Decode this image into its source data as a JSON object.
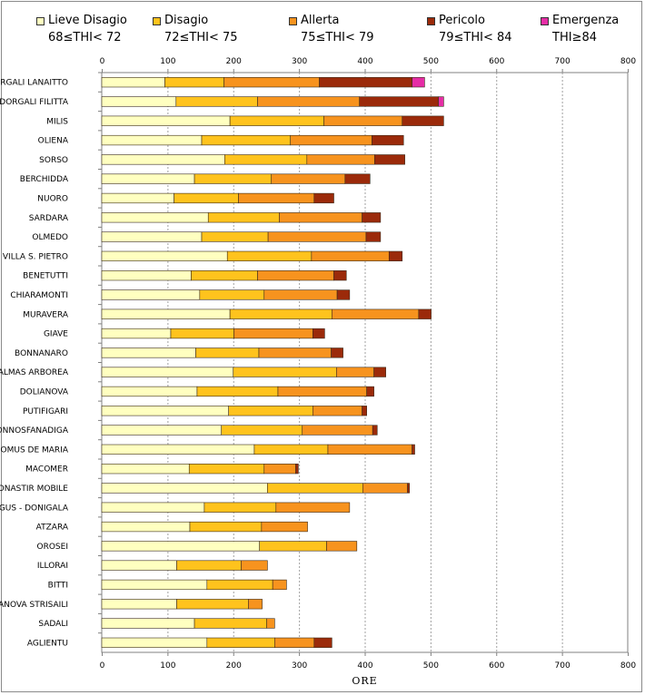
{
  "chart_data": {
    "type": "bar",
    "orientation": "horizontal",
    "stacked": true,
    "xlabel": "ORE",
    "xlim": [
      0,
      800
    ],
    "xticks": [
      "0",
      "100",
      "200",
      "300",
      "400",
      "500",
      "600",
      "700",
      "800"
    ],
    "grid": true,
    "legend_position": "top",
    "legend": [
      {
        "name": "Lieve Disagio",
        "range": "68≤THI< 72",
        "color": "#ffffc0"
      },
      {
        "name": "Disagio",
        "range": "72≤THI< 75",
        "color": "#ffc31d"
      },
      {
        "name": "Allerta",
        "range": "75≤THI< 79",
        "color": "#f7931e"
      },
      {
        "name": "Pericolo",
        "range": "79≤THI< 84",
        "color": "#9b2a0a"
      },
      {
        "name": "Emergenza",
        "range": "THI≥84",
        "color": "#e62da6"
      }
    ],
    "categories": [
      "DORGALI LANAITTO",
      "DORGALI FILITTA",
      "MILIS",
      "OLIENA",
      "SORSO",
      "BERCHIDDA",
      "NUORO",
      "SARDARA",
      "OLMEDO",
      "VILLA S. PIETRO",
      "BENETUTTI",
      "CHIARAMONTI",
      "MURAVERA",
      "GIAVE",
      "BONNANARO",
      "PALMAS ARBOREA",
      "DOLIANOVA",
      "PUTIFIGARI",
      "GONNOSFANADIGA",
      "DOMUS DE MARIA",
      "MACOMER",
      "MONASTIR MOBILE",
      "SIURGUS - DONIGALA",
      "ATZARA",
      "OROSEI",
      "ILLORAI",
      "BITTI",
      "VILLANOVA STRISAILI",
      "SADALI",
      "AGLIENTU"
    ],
    "series": [
      {
        "name": "Lieve Disagio",
        "values": [
          96,
          113,
          195,
          152,
          187,
          141,
          110,
          162,
          152,
          191,
          136,
          149,
          195,
          105,
          143,
          200,
          145,
          193,
          182,
          232,
          133,
          252,
          156,
          134,
          240,
          114,
          160,
          114,
          141,
          160
        ]
      },
      {
        "name": "Disagio",
        "values": [
          90,
          124,
          143,
          135,
          125,
          117,
          98,
          108,
          101,
          128,
          101,
          98,
          155,
          96,
          96,
          157,
          123,
          128,
          123,
          112,
          114,
          145,
          109,
          109,
          102,
          98,
          100,
          109,
          110,
          103
        ]
      },
      {
        "name": "Allerta",
        "values": [
          145,
          155,
          119,
          124,
          103,
          112,
          115,
          126,
          149,
          118,
          116,
          111,
          132,
          120,
          110,
          57,
          135,
          75,
          107,
          128,
          48,
          68,
          112,
          70,
          46,
          40,
          21,
          21,
          12,
          60
        ]
      },
      {
        "name": "Pericolo",
        "values": [
          141,
          120,
          63,
          48,
          46,
          38,
          30,
          28,
          22,
          20,
          19,
          19,
          19,
          18,
          18,
          18,
          11,
          7,
          7,
          4,
          4,
          3,
          0,
          0,
          0,
          0,
          0,
          0,
          0,
          27
        ]
      },
      {
        "name": "Emergenza",
        "values": [
          19,
          8,
          0,
          0,
          0,
          0,
          0,
          0,
          0,
          0,
          0,
          0,
          0,
          0,
          0,
          0,
          0,
          0,
          0,
          0,
          0,
          0,
          0,
          0,
          0,
          0,
          0,
          0,
          0,
          0
        ]
      }
    ]
  }
}
